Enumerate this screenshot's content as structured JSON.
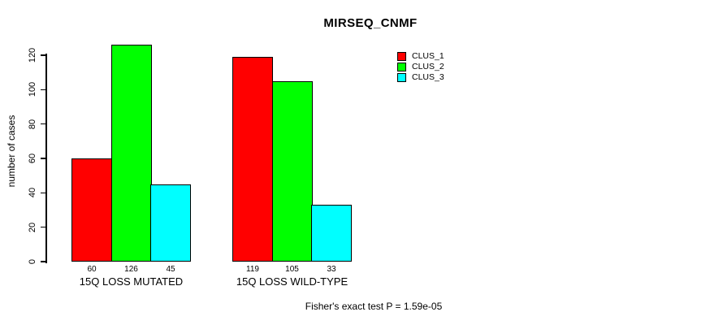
{
  "chart_data": {
    "type": "bar",
    "title": "MIRSEQ_CNMF",
    "ylabel": "number of cases",
    "xlabel": "",
    "ylim": [
      0,
      126
    ],
    "yticks": [
      0,
      20,
      40,
      60,
      80,
      100,
      120
    ],
    "categories": [
      "15Q LOSS MUTATED",
      "15Q LOSS WILD-TYPE"
    ],
    "series": [
      {
        "name": "CLUS_1",
        "color": "#ff0000",
        "values": [
          60,
          119
        ]
      },
      {
        "name": "CLUS_2",
        "color": "#00ff00",
        "values": [
          126,
          105
        ]
      },
      {
        "name": "CLUS_3",
        "color": "#00ffff",
        "values": [
          45,
          33
        ]
      }
    ],
    "value_labels_shown": true,
    "legend_position": "top-right",
    "grid": false,
    "footnote": "Fisher's exact test P = 1.59e-05"
  }
}
